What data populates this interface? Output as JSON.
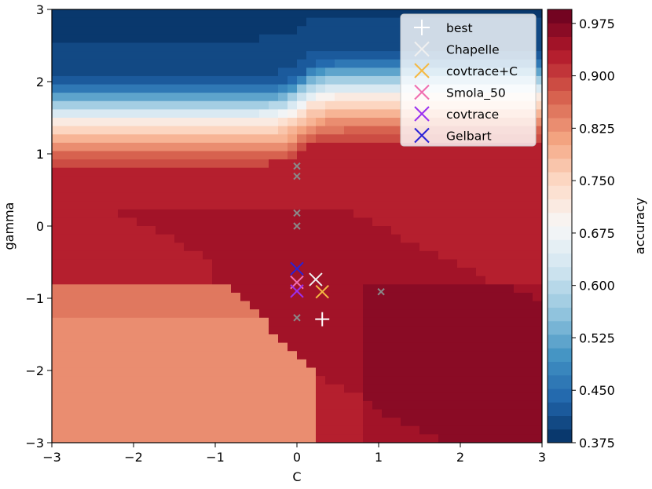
{
  "chart_data": {
    "type": "heatmap",
    "title": "",
    "xlabel": "C",
    "ylabel": "gamma",
    "xlim": [
      -3,
      3
    ],
    "ylim": [
      -3,
      3
    ],
    "xticks": [
      -3,
      -2,
      -1,
      0,
      1,
      2,
      3
    ],
    "yticks": [
      -3,
      -2,
      -1,
      0,
      1,
      2,
      3
    ],
    "xtick_labels": [
      "−3",
      "−2",
      "−1",
      "0",
      "1",
      "2",
      "3"
    ],
    "ytick_labels": [
      "−3",
      "−2",
      "−1",
      "0",
      "1",
      "2",
      "3"
    ],
    "colorbar": {
      "label": "accuracy",
      "range": [
        0.375,
        0.995
      ],
      "ticks": [
        0.375,
        0.45,
        0.525,
        0.6,
        0.675,
        0.75,
        0.825,
        0.9,
        0.975
      ],
      "tick_labels": [
        "0.375",
        "0.450",
        "0.525",
        "0.600",
        "0.675",
        "0.750",
        "0.825",
        "0.900",
        "0.975"
      ],
      "colormap": "RdBu_r"
    },
    "surface": {
      "description_note": "accuracy over log C (x) and log gamma (y)",
      "top_band_value": 0.38,
      "upper_transition_gamma": 1.4,
      "bright_band_value": 0.73,
      "mid_value": 0.93,
      "peak_value": 0.975,
      "lower_left_value": 0.85
    },
    "gray_points": [
      {
        "x": 0.0,
        "y": 0.83
      },
      {
        "x": 0.0,
        "y": 0.69
      },
      {
        "x": 0.0,
        "y": 0.18
      },
      {
        "x": 0.0,
        "y": 0.0
      },
      {
        "x": 0.0,
        "y": -1.27
      },
      {
        "x": 1.03,
        "y": -0.91
      }
    ],
    "series": [
      {
        "name": "best",
        "marker": "plus",
        "color": "#ffffff",
        "x": 0.31,
        "y": -1.29
      },
      {
        "name": "Chapelle",
        "marker": "x",
        "color": "#f0f0f0",
        "x": 0.23,
        "y": -0.74
      },
      {
        "name": "covtrace+C",
        "marker": "x",
        "color": "#f5b942",
        "x": 0.31,
        "y": -0.91
      },
      {
        "name": "Smola_50",
        "marker": "x",
        "color": "#f06eb0",
        "x": 0.0,
        "y": -0.78
      },
      {
        "name": "covtrace",
        "marker": "x",
        "color": "#9b30f0",
        "x": 0.0,
        "y": -0.9
      },
      {
        "name": "Gelbart",
        "marker": "x",
        "color": "#2a22d6",
        "x": 0.0,
        "y": -0.59
      }
    ],
    "legend_position": "top-right"
  }
}
